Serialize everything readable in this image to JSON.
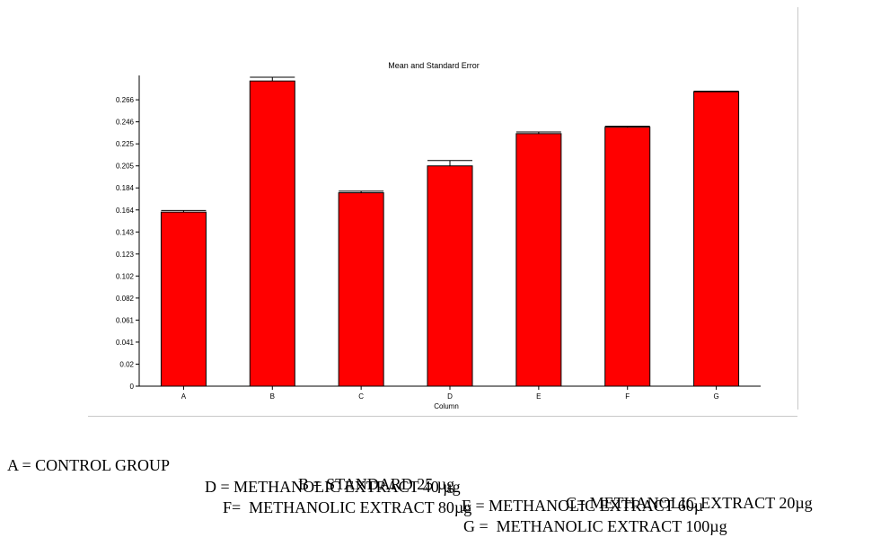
{
  "chart_data": {
    "type": "bar",
    "title": "Mean and Standard Error",
    "xlabel": "Column",
    "ylabel": "",
    "categories": [
      "A",
      "B",
      "C",
      "D",
      "E",
      "F",
      "G"
    ],
    "values": [
      0.162,
      0.284,
      0.18,
      0.205,
      0.235,
      0.241,
      0.274
    ],
    "errors": [
      0.0015,
      0.0035,
      0.0015,
      0.005,
      0.0015,
      0.001,
      0.0005
    ],
    "ytick_labels": [
      "0",
      "0.02",
      "0.041",
      "0.061",
      "0.082",
      "0.102",
      "0.123",
      "0.143",
      "0.164",
      "0.184",
      "0.205",
      "0.225",
      "0.246",
      "0.266"
    ],
    "ytick_values": [
      0,
      0.0205,
      0.041,
      0.0615,
      0.082,
      0.1025,
      0.123,
      0.1435,
      0.164,
      0.1845,
      0.205,
      0.2255,
      0.246,
      0.2665
    ],
    "ylim": [
      0,
      0.2875
    ],
    "bar_color": "#ff0000",
    "grid": false
  },
  "legend_text": {
    "line1": [
      "A = CONTROL GROUP",
      "B = STANDARD 25 µg",
      "C= METHANOLIC EXTRACT 20µg"
    ],
    "line2": [
      "D = METHANOLIC EXTRACT 40 µg",
      "E = METHANOLIC EXTRACT 60µ"
    ],
    "line3": [
      "F=  METHANOLIC EXTRACT 80µg",
      "G =  METHANOLIC EXTRACT 100µg"
    ]
  }
}
